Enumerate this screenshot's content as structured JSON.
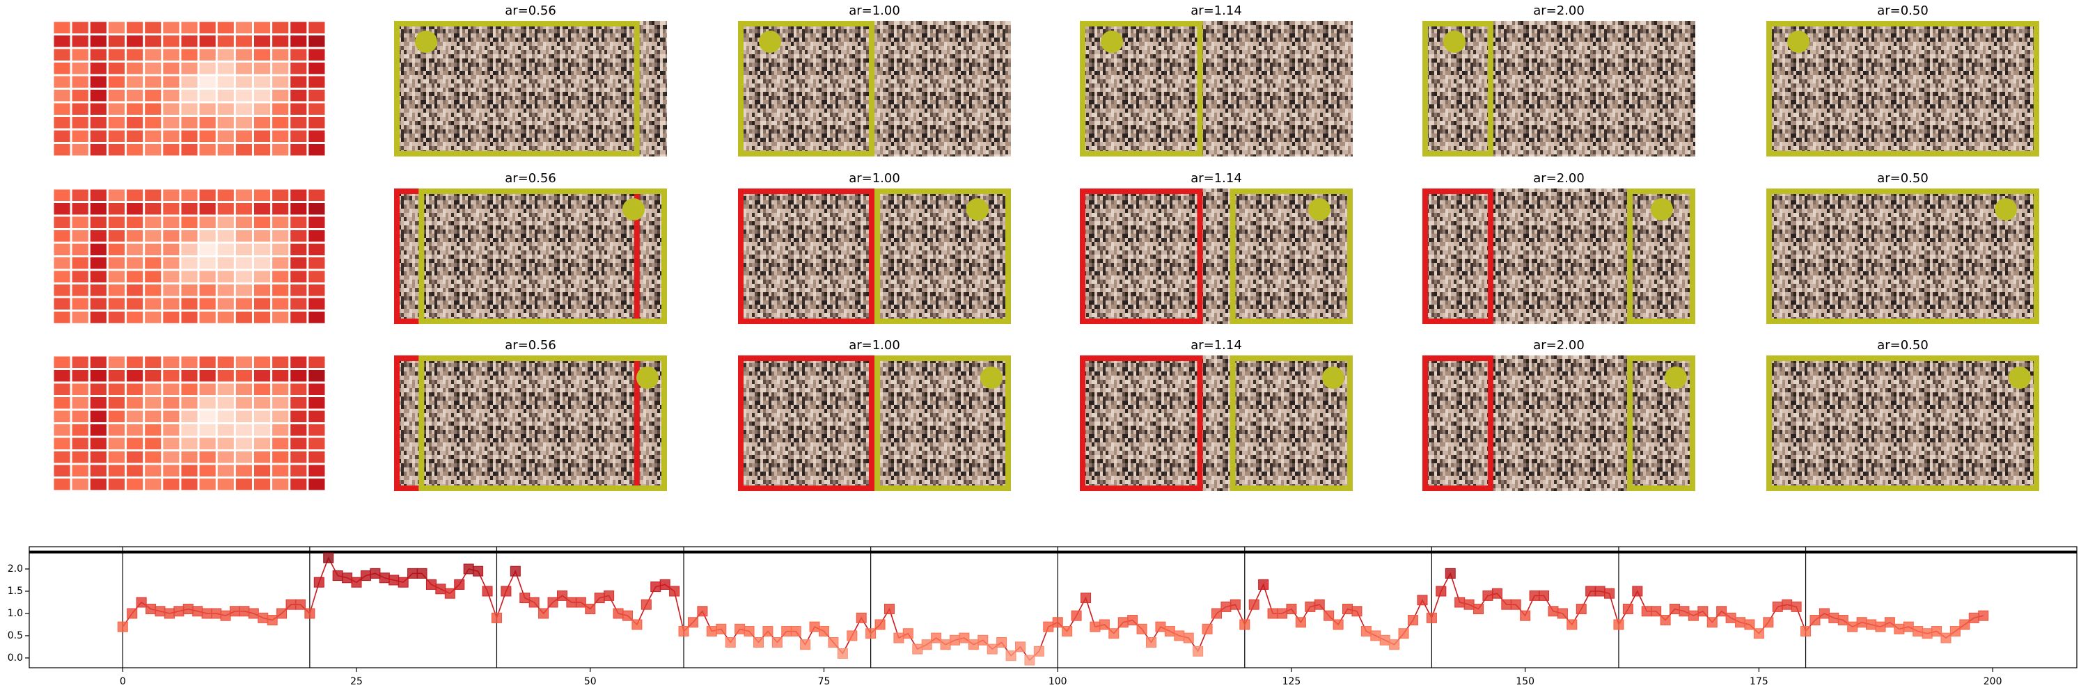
{
  "panels": [
    [
      "ar=0.56",
      "ar=1.00",
      "ar=1.14",
      "ar=2.00",
      "ar=0.50"
    ],
    [
      "ar=0.56",
      "ar=1.00",
      "ar=1.14",
      "ar=2.00",
      "ar=0.50"
    ],
    [
      "ar=0.56",
      "ar=1.00",
      "ar=1.14",
      "ar=2.00",
      "ar=0.50"
    ]
  ],
  "chart_data": {
    "type": "line",
    "x": [
      0,
      1,
      2,
      3,
      4,
      5,
      6,
      7,
      8,
      9,
      10,
      11,
      12,
      13,
      14,
      15,
      16,
      17,
      18,
      19,
      20,
      21,
      22,
      23,
      24,
      25,
      26,
      27,
      28,
      29,
      30,
      31,
      32,
      33,
      34,
      35,
      36,
      37,
      38,
      39,
      40,
      41,
      42,
      43,
      44,
      45,
      46,
      47,
      48,
      49,
      50,
      51,
      52,
      53,
      54,
      55,
      56,
      57,
      58,
      59,
      60,
      61,
      62,
      63,
      64,
      65,
      66,
      67,
      68,
      69,
      70,
      71,
      72,
      73,
      74,
      75,
      76,
      77,
      78,
      79,
      80,
      81,
      82,
      83,
      84,
      85,
      86,
      87,
      88,
      89,
      90,
      91,
      92,
      93,
      94,
      95,
      96,
      97,
      98,
      99,
      100,
      101,
      102,
      103,
      104,
      105,
      106,
      107,
      108,
      109,
      110,
      111,
      112,
      113,
      114,
      115,
      116,
      117,
      118,
      119,
      120,
      121,
      122,
      123,
      124,
      125,
      126,
      127,
      128,
      129,
      130,
      131,
      132,
      133,
      134,
      135,
      136,
      137,
      138,
      139,
      140,
      141,
      142,
      143,
      144,
      145,
      146,
      147,
      148,
      149,
      150,
      151,
      152,
      153,
      154,
      155,
      156,
      157,
      158,
      159,
      160,
      161,
      162,
      163,
      164,
      165,
      166,
      167,
      168,
      169,
      170,
      171,
      172,
      173,
      174,
      175,
      176,
      177,
      178,
      179,
      180,
      181,
      182,
      183,
      184,
      185,
      186,
      187,
      188,
      189,
      190,
      191,
      192,
      193,
      194,
      195,
      196,
      197,
      198,
      199
    ],
    "series": [
      {
        "color": "#cb181d",
        "values": [
          0.7,
          1.0,
          1.25,
          1.1,
          1.05,
          1.0,
          1.05,
          1.1,
          1.05,
          1.0,
          1.0,
          0.95,
          1.05,
          1.05,
          1.0,
          0.9,
          0.85,
          1.0,
          1.2,
          1.2,
          1.0,
          1.7,
          2.25,
          1.85,
          1.8,
          1.7,
          1.85,
          1.9,
          1.8,
          1.75,
          1.7,
          1.9,
          1.9,
          1.65,
          1.55,
          1.45,
          1.65,
          2.0,
          1.95,
          1.5,
          0.9,
          1.5,
          1.95,
          1.35,
          1.25,
          1.0,
          1.25,
          1.4,
          1.25,
          1.25,
          1.1,
          1.35,
          1.4,
          1.0,
          0.95,
          0.75,
          1.2,
          1.6,
          1.65,
          1.5,
          0.6,
          0.8,
          1.05,
          0.6,
          0.65,
          0.35,
          0.65,
          0.6,
          0.35,
          0.6,
          0.35,
          0.6,
          0.6,
          0.3,
          0.7,
          0.6,
          0.35,
          0.1,
          0.5,
          0.9,
          0.55,
          0.75,
          1.1,
          0.45,
          0.55,
          0.2,
          0.3,
          0.45,
          0.3,
          0.4,
          0.45,
          0.3,
          0.4,
          0.2,
          0.35,
          0.05,
          0.25,
          -0.05,
          0.15,
          0.7,
          0.8,
          0.6,
          0.95,
          1.35,
          0.7,
          0.75,
          0.55,
          0.8,
          0.85,
          0.65,
          0.35,
          0.7,
          0.6,
          0.5,
          0.45,
          0.15,
          0.65,
          1.0,
          1.15,
          1.2,
          0.75,
          1.2,
          1.65,
          1.0,
          1.0,
          1.1,
          0.8,
          1.15,
          1.2,
          0.95,
          0.75,
          1.1,
          1.05,
          0.6,
          0.5,
          0.4,
          0.3,
          0.55,
          0.85,
          1.3,
          0.9,
          1.5,
          1.9,
          1.25,
          1.2,
          1.1,
          1.4,
          1.45,
          1.2,
          1.2,
          0.95,
          1.4,
          1.4,
          1.05,
          1.0,
          0.75,
          1.1,
          1.5,
          1.5,
          1.45,
          0.75,
          1.1,
          1.5,
          1.05,
          1.05,
          0.85,
          1.1,
          1.05,
          0.95,
          1.05,
          0.8,
          1.05,
          0.9,
          0.8,
          0.75,
          0.55,
          0.8,
          1.15,
          1.2,
          1.15,
          0.6,
          0.85,
          1.0,
          0.9,
          0.85,
          0.7,
          0.8,
          0.75,
          0.7,
          0.8,
          0.65,
          0.7,
          0.6,
          0.55,
          0.6,
          0.45,
          0.6,
          0.75,
          0.9,
          0.95
        ]
      }
    ],
    "xlim": [
      -10,
      209
    ],
    "ylim": [
      -0.22,
      2.5
    ],
    "xticks": [
      0,
      25,
      50,
      75,
      100,
      125,
      150,
      175,
      200
    ],
    "yticks": [
      {
        "value": 0,
        "label": "0.0"
      },
      0.5,
      {
        "value": 1,
        "label": "1.0"
      },
      1.5,
      {
        "value": 2,
        "label": "2.0"
      }
    ],
    "vlines": [
      0,
      20,
      40,
      60,
      80,
      100,
      120,
      140,
      160,
      180
    ],
    "hline": 2.38
  }
}
